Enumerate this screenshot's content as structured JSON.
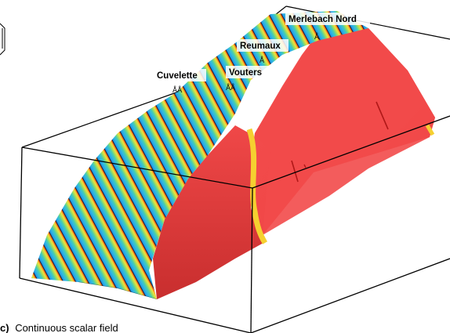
{
  "labels": {
    "merlebach": "Merlebach Nord",
    "reumaux": "Reumaux",
    "vouters": "Vouters",
    "cuvelette": "Cuvelette"
  },
  "caption": {
    "letter": "c)",
    "text": "Continuous scalar field"
  },
  "colors": {
    "fault_surface": "#f24a4a",
    "fault_shadow": "#d93030",
    "box_edge": "#000000",
    "band_gradient": [
      "#2aa8e8",
      "#40c8c0",
      "#9edc5a",
      "#f0e040",
      "#f5a020",
      "#e83030"
    ]
  }
}
